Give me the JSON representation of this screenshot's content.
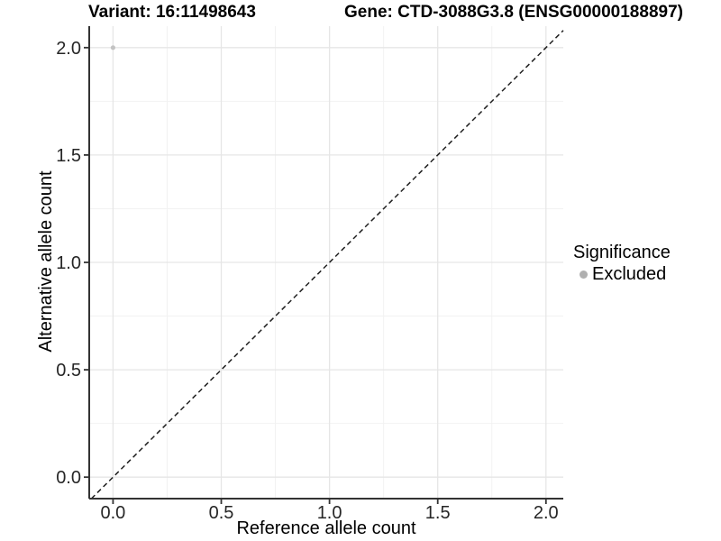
{
  "figure": {
    "background": "#ffffff"
  },
  "chart_data": {
    "type": "scatter",
    "titles": {
      "variant": "Variant: 16:11498643",
      "gene": "Gene: CTD-3088G3.8 (ENSG00000188897)"
    },
    "xlabel": "Reference allele count",
    "ylabel": "Alternative allele count",
    "xlim": [
      -0.11,
      2.08
    ],
    "ylim": [
      -0.1,
      2.1
    ],
    "x_ticks": {
      "values": [
        0,
        0.5,
        1,
        1.5,
        2
      ],
      "labels": [
        "0.0",
        "0.5",
        "1.0",
        "1.5",
        "2.0"
      ]
    },
    "y_ticks": {
      "values": [
        0,
        0.5,
        1,
        1.5,
        2
      ],
      "labels": [
        "0.0",
        "0.5",
        "1.0",
        "1.5",
        "2.0"
      ]
    },
    "minor_ticks": [
      0.25,
      0.75,
      1.25,
      1.75
    ],
    "grid": true,
    "reference_line": {
      "slope": 1,
      "intercept": 0,
      "style": "dashed",
      "color": "#1f1f1f"
    },
    "series": [
      {
        "name": "Excluded",
        "color": "#c3c3c3",
        "points": [
          {
            "x": 0,
            "y": 2
          }
        ]
      }
    ],
    "legend": {
      "title": "Significance",
      "position": "right",
      "items": [
        {
          "label": "Excluded",
          "color": "#b0b0b0"
        }
      ]
    },
    "style": {
      "axis_color": "#333333",
      "tick_label_color": "#262626",
      "grid_major_color": "#e6e6e6",
      "grid_minor_color": "#f2f2f2",
      "tick_label_size": 20,
      "point_radius": 2.6
    }
  }
}
